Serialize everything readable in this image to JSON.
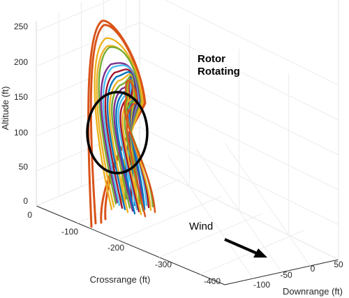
{
  "chart_data": {
    "type": "line",
    "projection": "3d",
    "xlabel": "Downrange (ft)",
    "ylabel": "Crossrange (ft)",
    "zlabel": "Altitude (ft)",
    "x_ticks": [
      "-100",
      "-50",
      "0",
      "50"
    ],
    "y_ticks": [
      "0",
      "-100",
      "-200",
      "-300",
      "-400"
    ],
    "z_ticks": [
      "0",
      "50",
      "100",
      "150",
      "200",
      "250"
    ],
    "xlim": [
      -120,
      60
    ],
    "ylim": [
      -420,
      40
    ],
    "zlim": [
      0,
      265
    ],
    "grid": true,
    "annotations": {
      "rotor": [
        "Rotor",
        "Rotating"
      ],
      "wind": "Wind"
    },
    "rotor_disk": {
      "center_altitude": 105,
      "radius": 90,
      "center_downrange": 0,
      "center_crossrange": 0
    },
    "series": [
      {
        "color": "#D95319",
        "peak_altitude": 262,
        "final_downrange": -60,
        "final_crossrange": -150,
        "final_altitude": 0
      },
      {
        "color": "#D95319",
        "peak_altitude": 256,
        "final_downrange": -55,
        "final_crossrange": -160,
        "final_altitude": 0
      },
      {
        "color": "#EDB120",
        "peak_altitude": 237,
        "final_downrange": -5,
        "final_crossrange": -150,
        "final_altitude": 15
      },
      {
        "color": "#EDB120",
        "peak_altitude": 226,
        "final_downrange": 0,
        "final_crossrange": -145,
        "final_altitude": 12
      },
      {
        "color": "#77AC30",
        "peak_altitude": 224,
        "final_downrange": 2,
        "final_crossrange": -140,
        "final_altitude": 14
      },
      {
        "color": "#7E2F8E",
        "peak_altitude": 200,
        "final_downrange": 5,
        "final_crossrange": -130,
        "final_altitude": 20
      },
      {
        "color": "#4DBEEE",
        "peak_altitude": 196,
        "final_downrange": 8,
        "final_crossrange": -125,
        "final_altitude": 22
      },
      {
        "color": "#A2142F",
        "peak_altitude": 188,
        "final_downrange": 10,
        "final_crossrange": -120,
        "final_altitude": 25
      },
      {
        "color": "#0072BD",
        "peak_altitude": 182,
        "final_downrange": 12,
        "final_crossrange": -115,
        "final_altitude": 28
      },
      {
        "color": "#EDB120",
        "peak_altitude": 176,
        "final_downrange": 15,
        "final_crossrange": -110,
        "final_altitude": 20
      },
      {
        "color": "#77AC30",
        "peak_altitude": 170,
        "final_downrange": 18,
        "final_crossrange": -105,
        "final_altitude": 30
      },
      {
        "color": "#7E2F8E",
        "peak_altitude": 165,
        "final_downrange": 20,
        "final_crossrange": -100,
        "final_altitude": 32
      },
      {
        "color": "#0072BD",
        "peak_altitude": 160,
        "final_downrange": 22,
        "final_crossrange": -95,
        "final_altitude": 34
      },
      {
        "color": "#4DBEEE",
        "peak_altitude": 156,
        "final_downrange": 24,
        "final_crossrange": -92,
        "final_altitude": 26
      },
      {
        "color": "#A2142F",
        "peak_altitude": 152,
        "final_downrange": 26,
        "final_crossrange": -88,
        "final_altitude": 30
      },
      {
        "color": "#EDB120",
        "peak_altitude": 148,
        "final_downrange": 28,
        "final_crossrange": -84,
        "final_altitude": 24
      },
      {
        "color": "#77AC30",
        "peak_altitude": 145,
        "final_downrange": 30,
        "final_crossrange": -80,
        "final_altitude": 36
      },
      {
        "color": "#D95319",
        "peak_altitude": 142,
        "final_downrange": 32,
        "final_crossrange": -76,
        "final_altitude": 40
      }
    ]
  }
}
